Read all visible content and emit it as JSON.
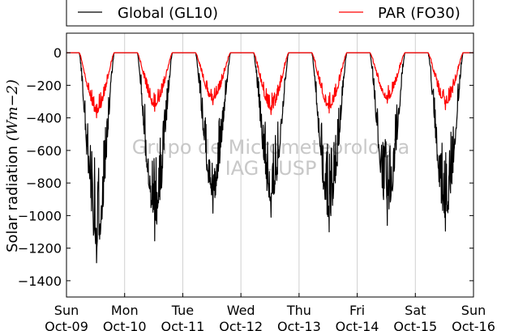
{
  "chart_data": {
    "type": "line",
    "ylabel": "Solar radiation (Wm−2)",
    "ylabel_prefix": "Solar radiation ",
    "ylabel_unit": "(Wm−2)",
    "ylim": [
      -1500,
      120
    ],
    "yticks": [
      0,
      -200,
      -400,
      -600,
      -800,
      -1000,
      -1200,
      -1400
    ],
    "xlim": [
      0,
      7
    ],
    "grid": "vertical",
    "legend_position": "top",
    "x_ticks": [
      {
        "pos": 0,
        "day": "Sun",
        "date": "Oct-09"
      },
      {
        "pos": 1,
        "day": "Mon",
        "date": "Oct-10"
      },
      {
        "pos": 2,
        "day": "Tue",
        "date": "Oct-11"
      },
      {
        "pos": 3,
        "day": "Wed",
        "date": "Oct-12"
      },
      {
        "pos": 4,
        "day": "Thu",
        "date": "Oct-13"
      },
      {
        "pos": 5,
        "day": "Fri",
        "date": "Oct-14"
      },
      {
        "pos": 6,
        "day": "Sat",
        "date": "Oct-15"
      },
      {
        "pos": 7,
        "day": "Sun",
        "date": "Oct-16"
      }
    ],
    "series": [
      {
        "name": "Global (GL10)",
        "color": "#000000",
        "daily_minimum": [
          -1290,
          -1155,
          -985,
          -1010,
          -1100,
          -1060,
          -1095
        ]
      },
      {
        "name": "PAR (FO30)",
        "color": "#ff0000",
        "daily_minimum": [
          -400,
          -360,
          -320,
          -380,
          -370,
          -310,
          -350
        ]
      }
    ],
    "annotations": [
      "Grupo de Micrometeorologia",
      "IAG - USP"
    ]
  }
}
